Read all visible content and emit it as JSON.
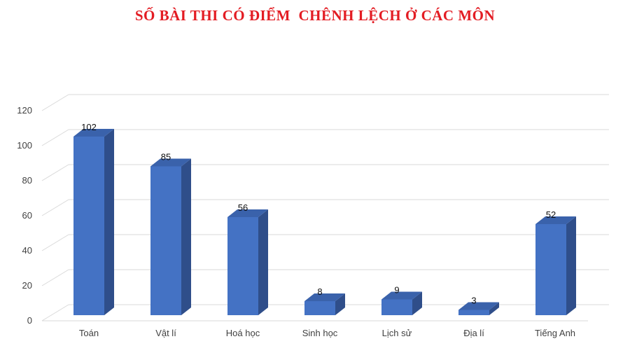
{
  "chart_data": {
    "type": "bar",
    "title": "SỐ BÀI THI CÓ ĐIỂM  CHÊNH LỆCH Ở CÁC MÔN",
    "categories": [
      "Toán",
      "Vật lí",
      "Hoá học",
      "Sinh học",
      "Lịch sử",
      "Địa lí",
      "Tiếng Anh"
    ],
    "values": [
      102,
      85,
      56,
      8,
      9,
      3,
      52
    ],
    "data_labels": [
      "102",
      "85",
      "56",
      "8",
      "9",
      "3",
      "52"
    ],
    "yticks": [
      "0",
      "20",
      "40",
      "60",
      "80",
      "100",
      "120"
    ],
    "ylim": [
      0,
      120
    ],
    "xlabel": "",
    "ylabel": "",
    "grid": true,
    "legend": "none",
    "bar_color": "#4472c4",
    "bar_side_color": "#2f4e8a",
    "bar_top_color": "#3a62ab",
    "title_color": "#e31c23"
  }
}
